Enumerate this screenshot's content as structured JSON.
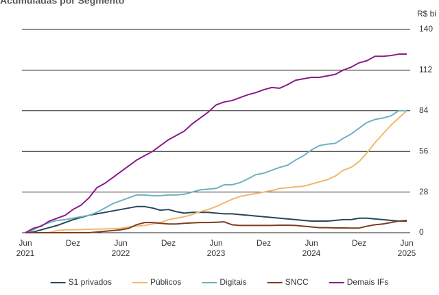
{
  "chart_data": {
    "type": "line",
    "title": "Acumuladas por Segmento",
    "y_label": "R$ bi",
    "categories": [
      "Jun\n2021",
      null,
      null,
      null,
      null,
      null,
      "Dez",
      null,
      null,
      null,
      null,
      null,
      "Jun\n2022",
      null,
      null,
      null,
      null,
      null,
      "Dez",
      null,
      null,
      null,
      null,
      null,
      "Jun\n2023",
      null,
      null,
      null,
      null,
      null,
      "Dez",
      null,
      null,
      null,
      null,
      null,
      "Jun\n2024",
      null,
      null,
      null,
      null,
      null,
      "Dez",
      null,
      null,
      null,
      null,
      null,
      "Jun\n2025"
    ],
    "series": [
      {
        "name": "S1 privados",
        "color": "#24485a",
        "values": [
          0,
          0.5,
          2,
          3.5,
          5,
          7,
          9,
          10.5,
          12,
          13,
          14,
          15,
          16,
          17,
          18,
          18,
          17,
          15.5,
          16,
          14.5,
          13.5,
          14,
          14,
          14,
          13.5,
          13,
          13,
          12.5,
          12,
          11.5,
          11,
          10.5,
          10,
          9.5,
          9,
          8.5,
          8,
          8,
          8,
          8.5,
          9,
          9,
          10,
          10,
          9.5,
          9,
          8.5,
          8,
          8
        ]
      },
      {
        "name": "Públicos",
        "color": "#f3b66c",
        "values": [
          0,
          0,
          0,
          0,
          1.5,
          2,
          2,
          2.2,
          2.4,
          2.5,
          2.6,
          2.8,
          3,
          4,
          4.5,
          5,
          6,
          7,
          9,
          10,
          11,
          12.5,
          14.5,
          16,
          18,
          20.5,
          23,
          25,
          26,
          27,
          28,
          29,
          30.5,
          31,
          31.5,
          32,
          33.5,
          35,
          36.5,
          39,
          43,
          45,
          49,
          55,
          62,
          68,
          74,
          79,
          84
        ]
      },
      {
        "name": "Digitais",
        "color": "#6cb2c2",
        "values": [
          0,
          2,
          5,
          7,
          8.5,
          9,
          10,
          11,
          12,
          14,
          17,
          20,
          22,
          24,
          26,
          26,
          25.5,
          25.5,
          26,
          26,
          26.5,
          28,
          29.5,
          30,
          30.5,
          33,
          33,
          34.5,
          37,
          40,
          41,
          43,
          45,
          46.5,
          50,
          53,
          57,
          60,
          61,
          61.5,
          65,
          68,
          72,
          76,
          78,
          79,
          80.5,
          84,
          84
        ]
      },
      {
        "name": "SNCC",
        "color": "#7b3d20",
        "values": [
          0,
          0,
          0,
          0,
          0,
          0,
          0,
          0,
          0,
          0.5,
          1,
          1.5,
          2,
          3,
          5.5,
          7,
          7,
          6.5,
          6,
          6,
          6.5,
          6.8,
          7,
          7,
          7.2,
          7.5,
          5.5,
          5,
          5,
          5,
          5,
          5,
          5.2,
          5.2,
          5,
          4.5,
          4,
          3.5,
          3.5,
          3.3,
          3.3,
          3.2,
          3.2,
          4.5,
          5.5,
          6,
          7,
          8,
          8.5
        ]
      },
      {
        "name": "Demais IFs",
        "color": "#8a1a88",
        "values": [
          0,
          3,
          4.5,
          8,
          10,
          12,
          16,
          19,
          24,
          31,
          34,
          38,
          42,
          46,
          50,
          53,
          56,
          60,
          64,
          67,
          70,
          75,
          79,
          83,
          88,
          90,
          91,
          93,
          95,
          96.5,
          98.5,
          100,
          99.5,
          102,
          105,
          106,
          107,
          107,
          108,
          109,
          112,
          114,
          117,
          118.5,
          121.5,
          121.5,
          122,
          123,
          123
        ]
      }
    ],
    "ylim": [
      0,
      140
    ],
    "yticks": [
      0,
      28,
      56,
      84,
      112,
      140
    ],
    "grid": true,
    "legend": "bottom"
  }
}
